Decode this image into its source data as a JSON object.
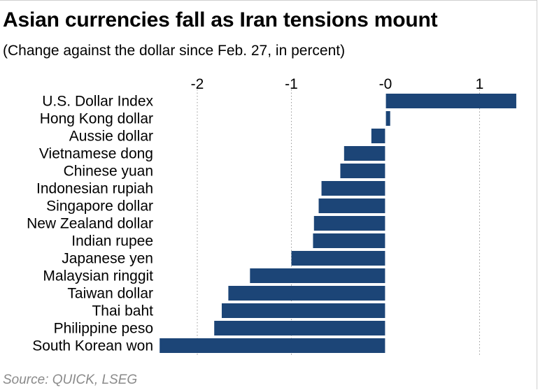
{
  "header": {
    "title": "Asian currencies fall as Iran tensions mount",
    "subtitle": "(Change against the dollar since Feb. 27, in percent)"
  },
  "footer": {
    "source": "Source: QUICK, LSEG"
  },
  "colors": {
    "bar": "#1c4577",
    "gridline": "#9a9a9a",
    "source_text": "#8a8a8a"
  },
  "chart_data": {
    "type": "bar",
    "orientation": "horizontal",
    "title": "Asian currencies fall as Iran tensions mount",
    "subtitle": "(Change against the dollar since Feb. 27, in percent)",
    "categories": [
      "U.S. Dollar Index",
      "Hong Kong dollar",
      "Aussie dollar",
      "Vietnamese dong",
      "Chinese yuan",
      "Indonesian rupiah",
      "Singapore dollar",
      "New Zealand dollar",
      "Indian rupee",
      "Japanese yen",
      "Malaysian ringgit",
      "Taiwan dollar",
      "Thai baht",
      "Philippine peso",
      "South Korean won"
    ],
    "values": [
      1.39,
      0.05,
      -0.15,
      -0.44,
      -0.48,
      -0.68,
      -0.71,
      -0.76,
      -0.77,
      -1.0,
      -1.44,
      -1.67,
      -1.74,
      -1.82,
      -2.4
    ],
    "xticks": [
      -2,
      -1,
      0,
      1
    ],
    "xtick_labels": [
      "-2",
      "-1",
      "-0",
      "1"
    ],
    "xlim": [
      -2.4,
      1.4
    ],
    "xlabel": "",
    "ylabel": "",
    "grid": "vertical dotted",
    "source": "Source: QUICK, LSEG"
  }
}
